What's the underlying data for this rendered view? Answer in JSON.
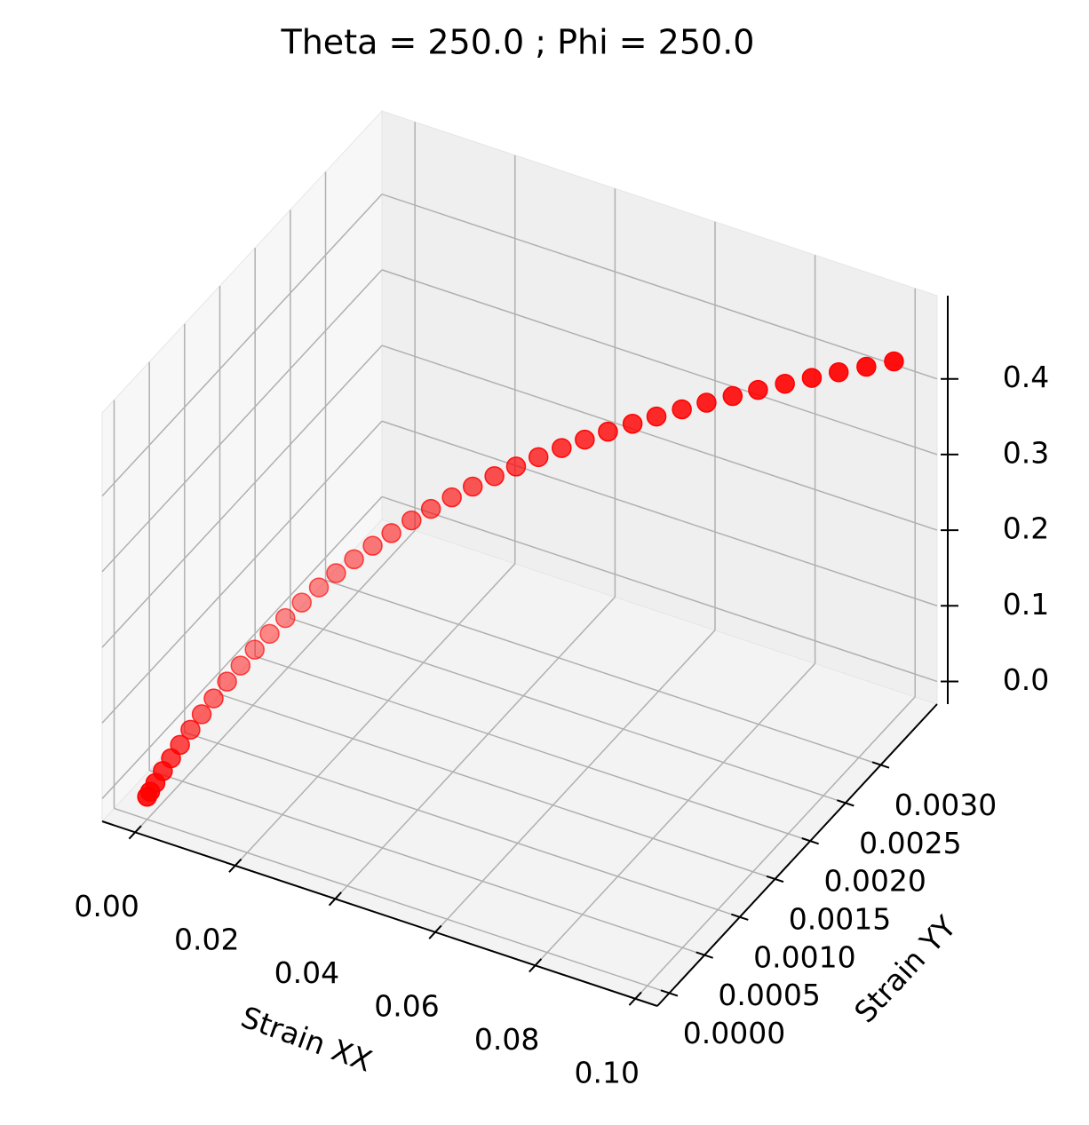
{
  "chart_data": {
    "type": "scatter3d",
    "title": "Theta = 250.0 ; Phi = 250.0",
    "xlabel": "Strain XX",
    "ylabel": "Strain YY",
    "color": "#ff0000",
    "xlim": [
      -0.0066,
      0.1044
    ],
    "ylim": [
      -0.00017,
      0.0038
    ],
    "zlim": [
      -0.03,
      0.51
    ],
    "xticks": [
      {
        "value": 0,
        "label": "0.00"
      },
      0.02,
      0.04,
      0.06,
      0.08,
      {
        "value": 0.1,
        "label": "0.10"
      }
    ],
    "yticks": [
      {
        "value": 0,
        "label": "0.0000"
      },
      0.0005,
      {
        "value": 0.001,
        "label": "0.0010"
      },
      0.0015,
      {
        "value": 0.002,
        "label": "0.0020"
      },
      0.0025,
      {
        "value": 0.003,
        "label": "0.0030"
      }
    ],
    "zticks": [
      {
        "value": 0,
        "label": "0.0"
      },
      0.1,
      0.2,
      0.3,
      0.4
    ],
    "grid": true,
    "x": [
      0,
      0.0004,
      0.0011,
      0.0021,
      0.0032,
      0.0044,
      0.0058,
      0.0073,
      0.0089,
      0.0107,
      0.0125,
      0.0144,
      0.0164,
      0.0185,
      0.0207,
      0.023,
      0.0253,
      0.0277,
      0.0302,
      0.0327,
      0.0354,
      0.038,
      0.0408,
      0.0436,
      0.0465,
      0.0494,
      0.0524,
      0.0555,
      0.0586,
      0.0617,
      0.065,
      0.0682,
      0.0716,
      0.0749,
      0.0784,
      0.0818,
      0.0854,
      0.089,
      0.0926,
      0.0963,
      0.1
    ],
    "y": [
      0,
      1.4e-05,
      3.9e-05,
      7.4e-05,
      0.000112,
      0.000154,
      0.000203,
      0.000256,
      0.000312,
      0.000375,
      0.000438,
      0.000504,
      0.000574,
      0.000648,
      0.000725,
      0.000805,
      0.000886,
      0.00097,
      0.001057,
      0.001145,
      0.001239,
      0.00133,
      0.001428,
      0.001526,
      0.001628,
      0.001729,
      0.001834,
      0.001943,
      0.002051,
      0.00216,
      0.002275,
      0.002387,
      0.002506,
      0.002622,
      0.002744,
      0.002863,
      0.002989,
      0.003115,
      0.003241,
      0.003371,
      0.0035
    ],
    "z": [
      0,
      0.0061,
      0.0166,
      0.0311,
      0.0466,
      0.0627,
      0.0809,
      0.0993,
      0.1181,
      0.138,
      0.1568,
      0.1754,
      0.1937,
      0.2117,
      0.2293,
      0.2463,
      0.2621,
      0.2773,
      0.2919,
      0.3053,
      0.3186,
      0.3304,
      0.3419,
      0.3525,
      0.3624,
      0.3714,
      0.3798,
      0.3877,
      0.3948,
      0.4012,
      0.4073,
      0.4127,
      0.4177,
      0.4221,
      0.4263,
      0.4299,
      0.4333,
      0.4363,
      0.439,
      0.4414,
      0.4436
    ]
  }
}
